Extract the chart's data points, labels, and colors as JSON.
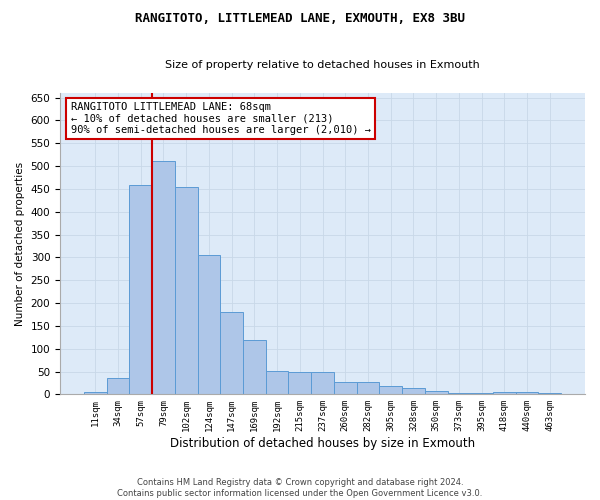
{
  "title_line1": "RANGITOTO, LITTLEMEAD LANE, EXMOUTH, EX8 3BU",
  "title_line2": "Size of property relative to detached houses in Exmouth",
  "xlabel": "Distribution of detached houses by size in Exmouth",
  "ylabel": "Number of detached properties",
  "categories": [
    "11sqm",
    "34sqm",
    "57sqm",
    "79sqm",
    "102sqm",
    "124sqm",
    "147sqm",
    "169sqm",
    "192sqm",
    "215sqm",
    "237sqm",
    "260sqm",
    "282sqm",
    "305sqm",
    "328sqm",
    "350sqm",
    "373sqm",
    "395sqm",
    "418sqm",
    "440sqm",
    "463sqm"
  ],
  "values": [
    5,
    35,
    458,
    512,
    455,
    305,
    180,
    118,
    52,
    50,
    50,
    28,
    27,
    19,
    13,
    8,
    3,
    3,
    5,
    5,
    3
  ],
  "bar_color": "#aec6e8",
  "bar_edge_color": "#5b9bd5",
  "grid_color": "#c8d8e8",
  "background_color": "#ddeaf8",
  "vline_color": "#cc0000",
  "annotation_text": "RANGITOTO LITTLEMEAD LANE: 68sqm\n← 10% of detached houses are smaller (213)\n90% of semi-detached houses are larger (2,010) →",
  "annotation_box_color": "#cc0000",
  "footer_line1": "Contains HM Land Registry data © Crown copyright and database right 2024.",
  "footer_line2": "Contains public sector information licensed under the Open Government Licence v3.0.",
  "ylim": [
    0,
    660
  ],
  "yticks": [
    0,
    50,
    100,
    150,
    200,
    250,
    300,
    350,
    400,
    450,
    500,
    550,
    600,
    650
  ]
}
